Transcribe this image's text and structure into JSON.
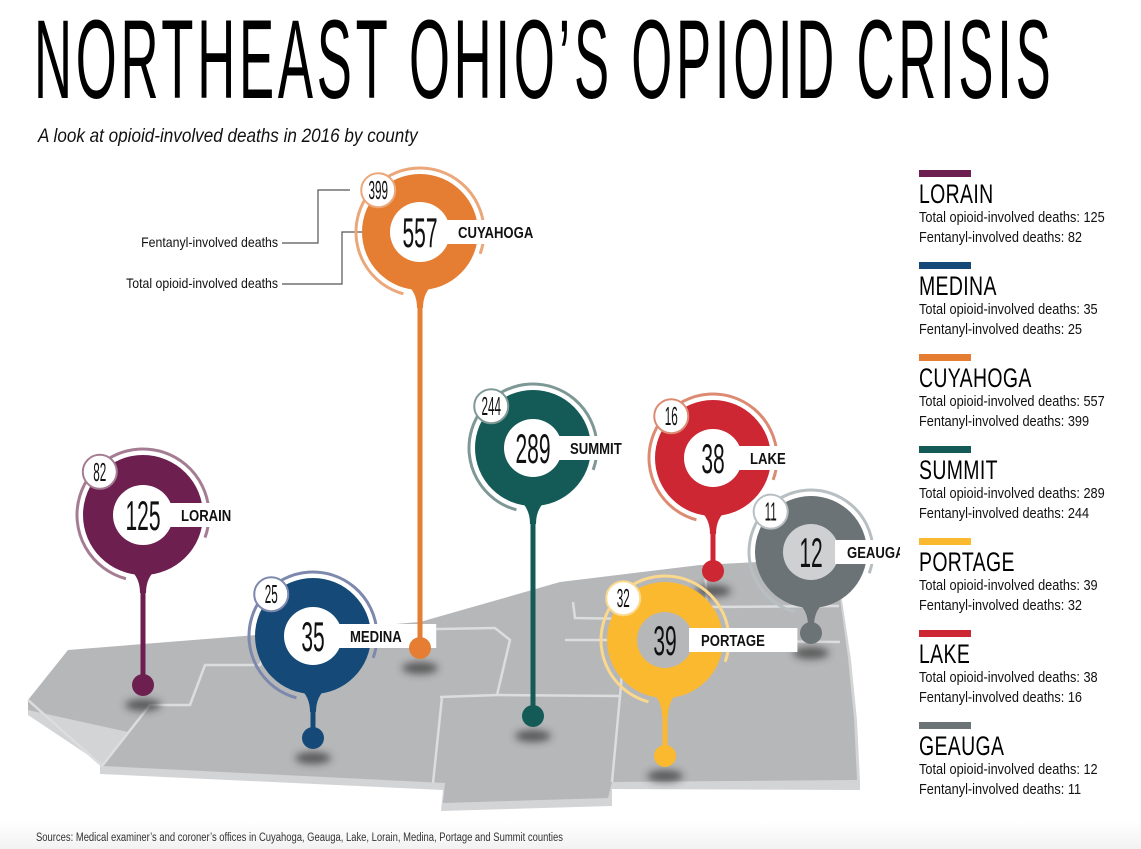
{
  "header": {
    "title": "NORTHEAST OHIO’S OPIOID CRISIS",
    "subtitle": "A look at opioid-involved deaths in 2016 by county"
  },
  "annotations": {
    "fentanyl_label": "Fentanyl-involved deaths",
    "total_label": "Total opioid-involved deaths"
  },
  "legend": {
    "total_prefix": "Total opioid-involved deaths: ",
    "fentanyl_prefix": "Fentanyl-involved deaths: "
  },
  "footer": {
    "source": "Sources: Medical examiner’s and coroner’s offices in Cuyahoga, Geauga, Lake, Lorain, Medina, Portage and Summit counties"
  },
  "chart_data": {
    "type": "map-pins",
    "title": "NORTHEAST OHIO’S OPIOID CRISIS",
    "subtitle": "A look at opioid-involved deaths in 2016 by county",
    "year": 2016,
    "metrics": [
      "Total opioid-involved deaths",
      "Fentanyl-involved deaths"
    ],
    "legend_position": "right",
    "counties": [
      {
        "name": "LORAIN",
        "total": 125,
        "fentanyl": 82,
        "color": "#6d1f4f",
        "ring_color": "#a57d93"
      },
      {
        "name": "MEDINA",
        "total": 35,
        "fentanyl": 25,
        "color": "#154a78",
        "ring_color": "#7d88ad"
      },
      {
        "name": "CUYAHOGA",
        "total": 557,
        "fentanyl": 399,
        "color": "#e57e33",
        "ring_color": "#eba779"
      },
      {
        "name": "SUMMIT",
        "total": 289,
        "fentanyl": 244,
        "color": "#145b57",
        "ring_color": "#7e9896"
      },
      {
        "name": "PORTAGE",
        "total": 39,
        "fentanyl": 32,
        "color": "#fbb930",
        "ring_color": "#fbd98c"
      },
      {
        "name": "LAKE",
        "total": 38,
        "fentanyl": 16,
        "color": "#cc2733",
        "ring_color": "#dd8a72"
      },
      {
        "name": "GEAUGA",
        "total": 12,
        "fentanyl": 11,
        "color": "#6b7377",
        "ring_color": "#b8bfc2"
      }
    ]
  }
}
